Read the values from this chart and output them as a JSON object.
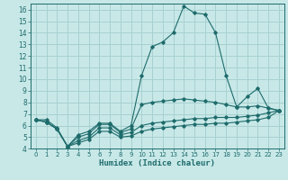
{
  "xlabel": "Humidex (Indice chaleur)",
  "bg_color": "#c8e8e8",
  "line_color": "#1e6b6b",
  "grid_color": "#a8d0d0",
  "xlim": [
    -0.5,
    23.5
  ],
  "ylim": [
    4,
    16.5
  ],
  "xticks": [
    0,
    1,
    2,
    3,
    4,
    5,
    6,
    7,
    8,
    9,
    10,
    11,
    12,
    13,
    14,
    15,
    16,
    17,
    18,
    19,
    20,
    21,
    22,
    23
  ],
  "yticks": [
    4,
    5,
    6,
    7,
    8,
    9,
    10,
    11,
    12,
    13,
    14,
    15,
    16
  ],
  "series": [
    {
      "x": [
        0,
        1,
        2,
        3,
        4,
        5,
        6,
        7,
        8,
        9,
        10,
        11,
        12,
        13,
        14,
        15,
        16,
        17,
        18,
        19,
        20,
        21,
        22,
        23
      ],
      "y": [
        6.5,
        6.5,
        5.8,
        4.2,
        5.2,
        5.5,
        6.2,
        6.2,
        5.5,
        6.0,
        10.3,
        12.8,
        13.2,
        14.0,
        16.3,
        15.7,
        15.6,
        14.0,
        10.3,
        7.6,
        8.5,
        9.2,
        7.5,
        7.3
      ]
    },
    {
      "x": [
        0,
        1,
        2,
        3,
        4,
        5,
        6,
        7,
        8,
        9,
        10,
        11,
        12,
        13,
        14,
        15,
        16,
        17,
        18,
        19,
        20,
        21,
        22,
        23
      ],
      "y": [
        6.5,
        6.3,
        5.7,
        4.2,
        5.0,
        5.3,
        6.1,
        6.1,
        5.4,
        5.7,
        7.8,
        8.0,
        8.1,
        8.2,
        8.3,
        8.2,
        8.1,
        8.0,
        7.8,
        7.6,
        7.6,
        7.7,
        7.5,
        7.3
      ]
    },
    {
      "x": [
        0,
        1,
        2,
        3,
        4,
        5,
        6,
        7,
        8,
        9,
        10,
        11,
        12,
        13,
        14,
        15,
        16,
        17,
        18,
        19,
        20,
        21,
        22,
        23
      ],
      "y": [
        6.5,
        6.3,
        5.7,
        4.2,
        4.7,
        5.0,
        5.8,
        5.8,
        5.2,
        5.4,
        6.0,
        6.2,
        6.3,
        6.4,
        6.5,
        6.6,
        6.6,
        6.7,
        6.7,
        6.7,
        6.8,
        6.9,
        7.1,
        7.3
      ]
    },
    {
      "x": [
        0,
        1,
        2,
        3,
        4,
        5,
        6,
        7,
        8,
        9,
        10,
        11,
        12,
        13,
        14,
        15,
        16,
        17,
        18,
        19,
        20,
        21,
        22,
        23
      ],
      "y": [
        6.5,
        6.3,
        5.7,
        4.2,
        4.5,
        4.8,
        5.5,
        5.5,
        5.0,
        5.1,
        5.5,
        5.7,
        5.8,
        5.9,
        6.0,
        6.1,
        6.1,
        6.2,
        6.2,
        6.3,
        6.4,
        6.5,
        6.7,
        7.3
      ]
    }
  ]
}
